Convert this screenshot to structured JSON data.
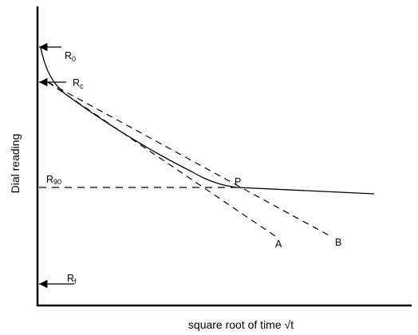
{
  "axes": {
    "x_label": "square root of time √t",
    "y_label": "Dial reading"
  },
  "markers": {
    "r0": {
      "main": "R",
      "sub": "0"
    },
    "rc": {
      "main": "R",
      "sub": "c"
    },
    "r90": {
      "main": "R",
      "sub": "90"
    },
    "rf": {
      "main": "R",
      "sub": "f"
    }
  },
  "points": {
    "p": "P",
    "a": "A",
    "b": "B"
  },
  "colors": {
    "ink": "#000000",
    "background": "#ffffff"
  }
}
